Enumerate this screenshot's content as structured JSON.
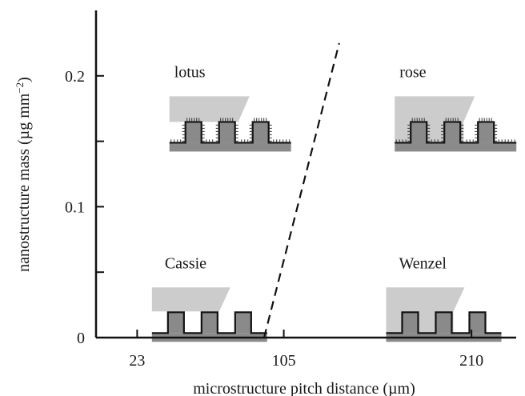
{
  "chart_data": {
    "type": "line",
    "xlabel": "microstructure pitch distance (µm)",
    "ylabel": "nanostructure mass (µg mm",
    "ylabel_sup": "−2",
    "ylabel_close": ")",
    "xlim": [
      0,
      235
    ],
    "ylim": [
      0,
      0.25
    ],
    "x_ticks": [
      {
        "value": 23,
        "label": "23"
      },
      {
        "value": 105,
        "label": "105"
      },
      {
        "value": 210,
        "label": "210"
      }
    ],
    "y_ticks": [
      {
        "value": 0,
        "label": "0"
      },
      {
        "value": 0.1,
        "label": "0.1"
      },
      {
        "value": 0.2,
        "label": "0.2"
      }
    ],
    "y_minor_ticks": [
      0.05,
      0.15
    ],
    "series": [
      {
        "style": "dashed",
        "color": "#111111",
        "points": [
          {
            "x": 94,
            "y": 0.0
          },
          {
            "x": 136,
            "y": 0.225
          }
        ]
      }
    ],
    "annotations": [
      {
        "label": "lotus",
        "regime": "lotus",
        "x": 50,
        "y": 0.199
      },
      {
        "label": "rose",
        "regime": "rose",
        "x": 176,
        "y": 0.199
      },
      {
        "label": "Cassie",
        "regime": "cassie",
        "x": 42,
        "y": 0.053
      },
      {
        "label": "Wenzel",
        "regime": "wenzel",
        "x": 173,
        "y": 0.053
      }
    ],
    "colors": {
      "droplet": "#cccccc",
      "substrate": "#8a8a8a",
      "outline": "#111111",
      "hairs": "#333333"
    }
  }
}
